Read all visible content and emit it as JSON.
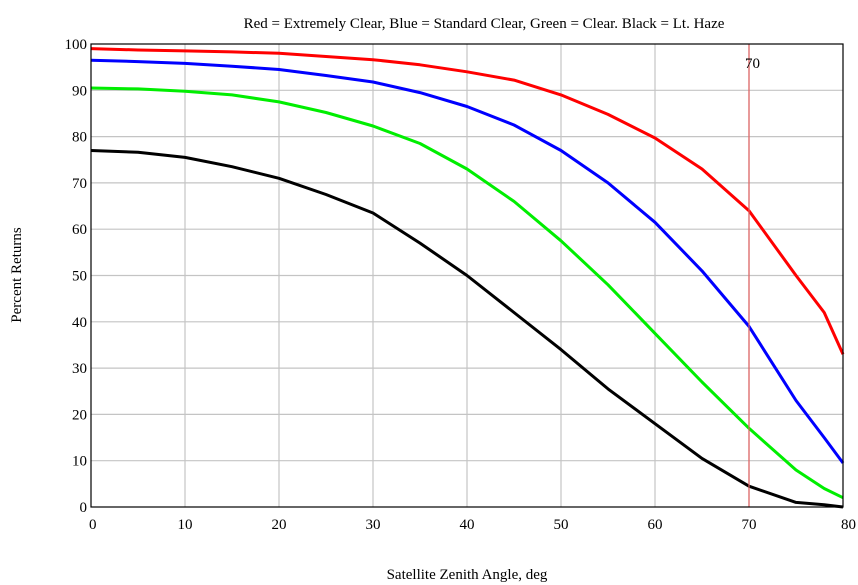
{
  "chart_data": {
    "type": "line",
    "title": "Red = Extremely Clear, Blue = Standard Clear, Green = Clear. Black = Lt. Haze",
    "xlabel": "Satellite Zenith Angle, deg",
    "ylabel": "Percent Returns",
    "xlim": [
      0,
      80
    ],
    "ylim": [
      0,
      100
    ],
    "x_ticks": [
      0,
      10,
      20,
      30,
      40,
      50,
      60,
      70,
      80
    ],
    "y_ticks": [
      0,
      10,
      20,
      30,
      40,
      50,
      60,
      70,
      80,
      90,
      100
    ],
    "grid": true,
    "marker": {
      "x": 70,
      "label": "70",
      "color": "#e06060"
    },
    "series": [
      {
        "color": "#ff0000",
        "x": [
          0,
          5,
          10,
          15,
          20,
          25,
          30,
          35,
          40,
          45,
          50,
          55,
          60,
          65,
          70,
          75,
          78,
          80
        ],
        "y": [
          99,
          98.7,
          98.5,
          98.3,
          98,
          97.3,
          96.6,
          95.5,
          94,
          92.2,
          89,
          84.8,
          79.7,
          73,
          64,
          50,
          42,
          33
        ]
      },
      {
        "color": "#0000ff",
        "x": [
          0,
          5,
          10,
          15,
          20,
          25,
          30,
          35,
          40,
          45,
          50,
          55,
          60,
          65,
          70,
          75,
          78,
          80
        ],
        "y": [
          96.5,
          96.2,
          95.8,
          95.2,
          94.5,
          93.2,
          91.8,
          89.5,
          86.5,
          82.5,
          77,
          70,
          61.5,
          51,
          39,
          23,
          15,
          9.5
        ]
      },
      {
        "color": "#00ee00",
        "x": [
          0,
          5,
          10,
          15,
          20,
          25,
          30,
          35,
          40,
          45,
          50,
          55,
          60,
          65,
          70,
          75,
          78,
          80
        ],
        "y": [
          90.5,
          90.3,
          89.8,
          89,
          87.5,
          85.2,
          82.3,
          78.5,
          73,
          66,
          57.5,
          48,
          37.5,
          27,
          17,
          8,
          4,
          2
        ]
      },
      {
        "color": "#000000",
        "x": [
          0,
          5,
          10,
          15,
          20,
          25,
          30,
          35,
          40,
          45,
          50,
          55,
          60,
          65,
          70,
          75,
          78,
          80
        ],
        "y": [
          77,
          76.6,
          75.5,
          73.5,
          71,
          67.5,
          63.5,
          57,
          50,
          42,
          34,
          25.5,
          18,
          10.5,
          4.5,
          1,
          0.5,
          0
        ]
      }
    ]
  }
}
